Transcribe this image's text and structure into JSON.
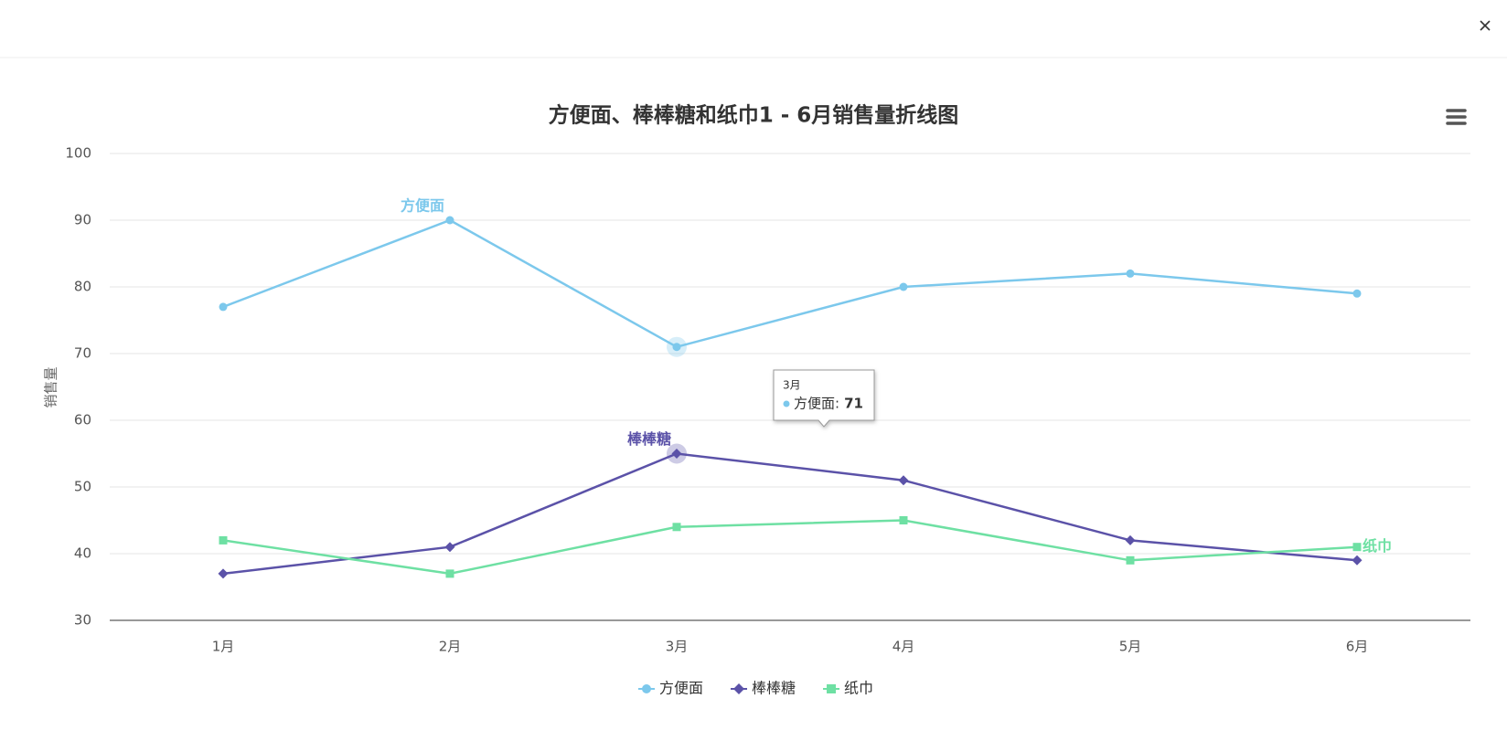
{
  "chart_data": {
    "type": "line",
    "title": "方便面、棒棒糖和纸巾1 - 6月销售量折线图",
    "y_label": "销售量",
    "categories": [
      "1月",
      "2月",
      "3月",
      "4月",
      "5月",
      "6月"
    ],
    "series": [
      {
        "name": "方便面",
        "color": "#7cc8ec",
        "marker": "circle",
        "values": [
          77,
          90,
          71,
          80,
          82,
          79
        ]
      },
      {
        "name": "棒棒糖",
        "color": "#5b52a8",
        "marker": "diamond",
        "values": [
          37,
          41,
          55,
          51,
          42,
          39
        ]
      },
      {
        "name": "纸巾",
        "color": "#6ee0a3",
        "marker": "square",
        "values": [
          42,
          37,
          44,
          45,
          39,
          41
        ]
      }
    ],
    "ylim": [
      30,
      100
    ],
    "yticks": [
      30,
      40,
      50,
      60,
      70,
      80,
      90,
      100
    ],
    "grid": true,
    "tooltip": {
      "title": "3月",
      "label": "方便面:",
      "value": 71
    }
  }
}
